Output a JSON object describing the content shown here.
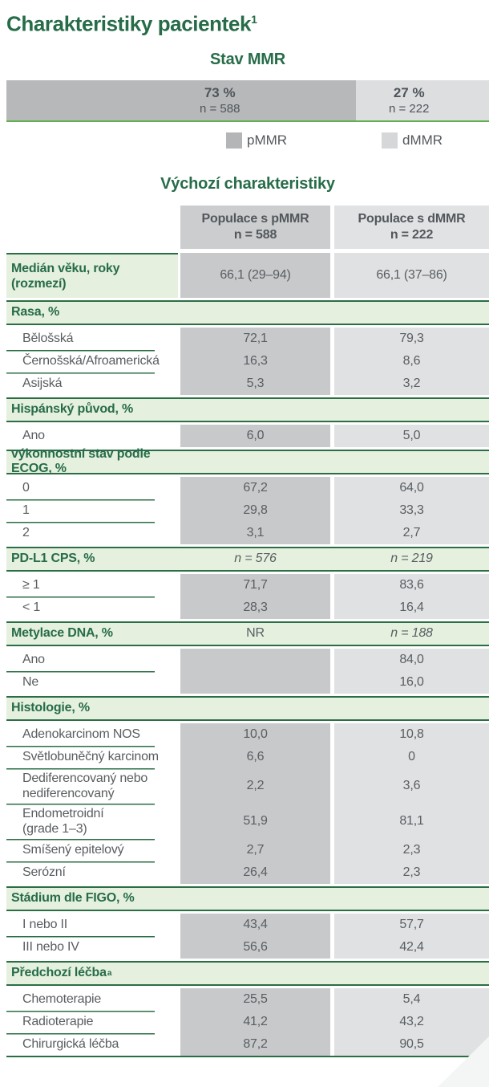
{
  "page": {
    "title": "Charakteristiky pacientek",
    "title_sup": "1"
  },
  "colors": {
    "heading_green": "#276c49",
    "table_border_green": "#2b6e45",
    "section_bg_green": "#e5f0de",
    "bar_underline_green": "#61b04e",
    "pmmr_bar": "#b6b8ba",
    "dmmr_bar": "#dcdee0",
    "pmmr_header_bg": "#cbcdcf",
    "dmmr_header_bg": "#e0e2e4",
    "pmmr_cell_bg": "#c7c9cb",
    "dmmr_cell_bg": "#dfe1e2",
    "text_gray": "#54585c"
  },
  "mmr_bar": {
    "heading": "Stav MMR",
    "segments": [
      {
        "name": "pMMR",
        "pct": 72.5,
        "pct_label": "73 %",
        "n_label": "n = 588"
      },
      {
        "name": "dMMR",
        "pct": 27.5,
        "pct_label": "27 %",
        "n_label": "n = 222"
      }
    ],
    "legend": [
      {
        "label": "pMMR"
      },
      {
        "label": "dMMR"
      }
    ]
  },
  "chart_data": {
    "type": "bar",
    "title": "Stav MMR",
    "orientation": "horizontal-stacked",
    "categories": [
      "pMMR",
      "dMMR"
    ],
    "values": [
      73,
      27
    ],
    "counts": [
      588,
      222
    ],
    "unit": "%",
    "legend_position": "bottom"
  },
  "table": {
    "heading": "Výchozí charakteristiky",
    "col_headers": [
      {
        "line1": "Populace s pMMR",
        "line2": "n = 588"
      },
      {
        "line1": "Populace s dMMR",
        "line2": "n = 222"
      }
    ],
    "rows": [
      {
        "type": "stat",
        "label_lines": [
          "Medián věku, roky",
          "(rozmezí)"
        ],
        "v1": "66,1 (29–94)",
        "v2": "66,1 (37–86)"
      },
      {
        "type": "section",
        "label": "Rasa, %"
      },
      {
        "type": "data",
        "label_lines": [
          "Bělošská"
        ],
        "v1": "72,1",
        "v2": "79,3"
      },
      {
        "type": "data",
        "label_lines": [
          "Černošská/Afroamerická"
        ],
        "v1": "16,3",
        "v2": "8,6"
      },
      {
        "type": "data",
        "label_lines": [
          "Asijská"
        ],
        "v1": "5,3",
        "v2": "3,2"
      },
      {
        "type": "section",
        "label": "Hispánský původ, %"
      },
      {
        "type": "data",
        "label_lines": [
          "Ano"
        ],
        "v1": "6,0",
        "v2": "5,0"
      },
      {
        "type": "section",
        "label": "výkonnostní stav podle ECOG, %"
      },
      {
        "type": "data",
        "label_lines": [
          "0"
        ],
        "v1": "67,2",
        "v2": "64,0"
      },
      {
        "type": "data",
        "label_lines": [
          "1"
        ],
        "v1": "29,8",
        "v2": "33,3"
      },
      {
        "type": "data",
        "label_lines": [
          "2"
        ],
        "v1": "3,1",
        "v2": "2,7"
      },
      {
        "type": "section",
        "label": "PD-L1 CPS, %",
        "v1": "n = 576",
        "v2": "n = 219",
        "v1_italic": true,
        "v2_italic": true
      },
      {
        "type": "data",
        "label_lines": [
          "≥ 1"
        ],
        "v1": "71,7",
        "v2": "83,6"
      },
      {
        "type": "data",
        "label_lines": [
          "< 1"
        ],
        "v1": "28,3",
        "v2": "16,4"
      },
      {
        "type": "section",
        "label": "Metylace DNA, %",
        "v1": "NR",
        "v2": "n = 188",
        "v2_italic": true
      },
      {
        "type": "data",
        "label_lines": [
          "Ano"
        ],
        "v1": "",
        "v2": "84,0"
      },
      {
        "type": "data",
        "label_lines": [
          "Ne"
        ],
        "v1": "",
        "v2": "16,0"
      },
      {
        "type": "section",
        "label": "Histologie, %"
      },
      {
        "type": "data",
        "label_lines": [
          "Adenokarcinom NOS"
        ],
        "v1": "10,0",
        "v2": "10,8"
      },
      {
        "type": "data",
        "label_lines": [
          "Světlobuněčný karcinom"
        ],
        "v1": "6,6",
        "v2": "0"
      },
      {
        "type": "data",
        "label_lines": [
          "Dediferencovaný nebo",
          "nediferencovaný"
        ],
        "v1": "2,2",
        "v2": "3,6"
      },
      {
        "type": "data",
        "label_lines": [
          "Endometroidní",
          "(grade 1–3)"
        ],
        "v1": "51,9",
        "v2": "81,1"
      },
      {
        "type": "data",
        "label_lines": [
          "Smíšený epitelový"
        ],
        "v1": "2,7",
        "v2": "2,3"
      },
      {
        "type": "data",
        "label_lines": [
          "Serózní"
        ],
        "v1": "26,4",
        "v2": "2,3"
      },
      {
        "type": "section",
        "label": "Stádium dle FIGO, %"
      },
      {
        "type": "data",
        "label_lines": [
          "I nebo II"
        ],
        "v1": "43,4",
        "v2": "57,7"
      },
      {
        "type": "data",
        "label_lines": [
          "III nebo IV"
        ],
        "v1": "56,6",
        "v2": "42,4"
      },
      {
        "type": "section",
        "label": "Předchozí léčba",
        "sup": "a"
      },
      {
        "type": "data",
        "label_lines": [
          "Chemoterapie"
        ],
        "v1": "25,5",
        "v2": "5,4"
      },
      {
        "type": "data",
        "label_lines": [
          "Radioterapie"
        ],
        "v1": "41,2",
        "v2": "43,2"
      },
      {
        "type": "data",
        "label_lines": [
          "Chirurgická léčba"
        ],
        "v1": "87,2",
        "v2": "90,5"
      }
    ]
  }
}
